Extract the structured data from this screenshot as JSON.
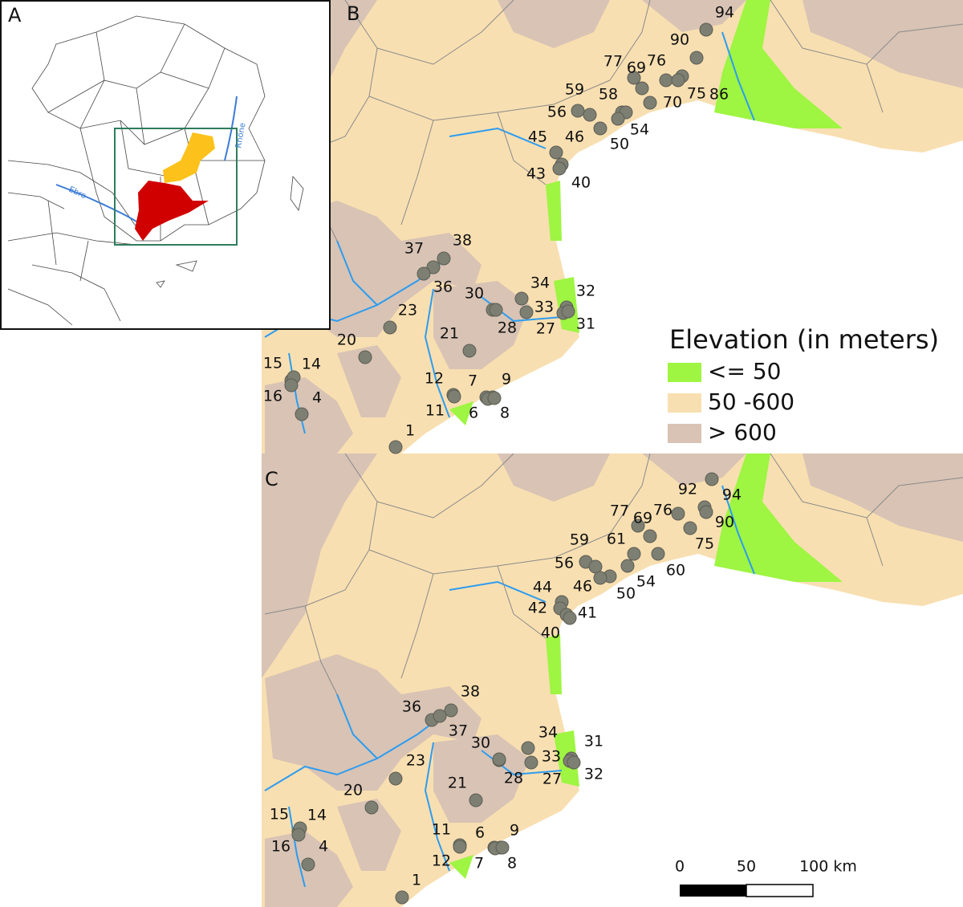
{
  "panels": [
    {
      "label": "A",
      "rivers": [
        "Ebro",
        "Rhône"
      ]
    },
    {
      "label": "B",
      "sites": [
        "94",
        "90",
        "77",
        "69",
        "76",
        "86",
        "59",
        "58",
        "56",
        "75",
        "70",
        "54",
        "46",
        "50",
        "45",
        "43",
        "40",
        "37",
        "38",
        "36",
        "30",
        "34",
        "32",
        "33",
        "31",
        "27",
        "28",
        "23",
        "21",
        "20",
        "15",
        "14",
        "16",
        "4",
        "12",
        "7",
        "9",
        "11",
        "6",
        "8",
        "1"
      ]
    },
    {
      "label": "C",
      "sites": [
        "92",
        "94",
        "77",
        "69",
        "76",
        "90",
        "59",
        "61",
        "75",
        "56",
        "60",
        "54",
        "50",
        "44",
        "46",
        "42",
        "41",
        "40",
        "38",
        "36",
        "37",
        "30",
        "34",
        "31",
        "33",
        "32",
        "23",
        "28",
        "27",
        "21",
        "20",
        "15",
        "14",
        "16",
        "4",
        "11",
        "6",
        "9",
        "12",
        "7",
        "8",
        "1"
      ]
    }
  ],
  "legend": {
    "title": "Elevation (in meters)",
    "items": [
      "<= 50",
      "50 -600",
      "> 600"
    ]
  },
  "scale_bar": {
    "labels": [
      "0",
      "50",
      "100 km"
    ]
  }
}
